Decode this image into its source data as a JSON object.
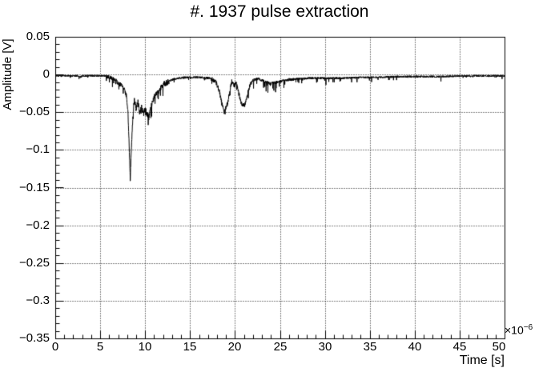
{
  "title": "#. 1937 pulse extraction",
  "colors": {
    "background": "#ffffff",
    "line": "#000000",
    "frame": "#000000",
    "grid": "#000000",
    "text": "#000000"
  },
  "x_axis": {
    "label": "Time [s]",
    "exponent": {
      "base": "×10",
      "power": "−6"
    },
    "tick_labels": [
      "0",
      "5",
      "10",
      "15",
      "20",
      "25",
      "30",
      "35",
      "40",
      "45",
      "50"
    ],
    "tick_values": [
      0,
      5,
      10,
      15,
      20,
      25,
      30,
      35,
      40,
      45,
      50
    ],
    "min": 0,
    "max": 50,
    "minor_per_major": 5
  },
  "y_axis": {
    "label": "Amplitude [V]",
    "tick_labels": [
      "0.05",
      "0",
      "−0.05",
      "−0.1",
      "−0.15",
      "−0.2",
      "−0.25",
      "−0.3",
      "−0.35"
    ],
    "tick_values": [
      0.05,
      0,
      -0.05,
      -0.1,
      -0.15,
      -0.2,
      -0.25,
      -0.3,
      -0.35
    ],
    "min": -0.35,
    "max": 0.05,
    "minor_per_major": 5
  },
  "chart_data": {
    "type": "line",
    "title": "#. 1937 pulse extraction",
    "xlabel": "Time [s]",
    "ylabel": "Amplitude [V]",
    "x_unit_multiplier": "1e-6",
    "xlim": [
      0,
      50
    ],
    "ylim": [
      -0.35,
      0.05
    ],
    "grid": true,
    "grid_style": "dotted",
    "legend": "none",
    "line_color": "#000000",
    "seed": 1937,
    "sample_step_us": 0.02,
    "keypoints": [
      [
        0.0,
        -0.001
      ],
      [
        2.5,
        -0.001
      ],
      [
        2.7,
        -0.003
      ],
      [
        3.0,
        -0.001
      ],
      [
        5.6,
        -0.001
      ],
      [
        6.2,
        -0.004
      ],
      [
        6.8,
        -0.008
      ],
      [
        7.2,
        -0.012
      ],
      [
        7.6,
        -0.018
      ],
      [
        7.9,
        -0.028
      ],
      [
        8.05,
        -0.05
      ],
      [
        8.2,
        -0.1
      ],
      [
        8.3,
        -0.138
      ],
      [
        8.4,
        -0.105
      ],
      [
        8.55,
        -0.065
      ],
      [
        8.75,
        -0.03
      ],
      [
        8.95,
        -0.045
      ],
      [
        9.15,
        -0.035
      ],
      [
        9.35,
        -0.05
      ],
      [
        9.55,
        -0.04
      ],
      [
        9.75,
        -0.052
      ],
      [
        9.95,
        -0.044
      ],
      [
        10.15,
        -0.05
      ],
      [
        10.35,
        -0.055
      ],
      [
        10.55,
        -0.045
      ],
      [
        10.75,
        -0.035
      ],
      [
        11.0,
        -0.028
      ],
      [
        11.3,
        -0.022
      ],
      [
        11.7,
        -0.016
      ],
      [
        12.1,
        -0.011
      ],
      [
        12.6,
        -0.008
      ],
      [
        13.2,
        -0.005
      ],
      [
        14.5,
        -0.003
      ],
      [
        16.0,
        -0.003
      ],
      [
        17.2,
        -0.004
      ],
      [
        17.8,
        -0.008
      ],
      [
        18.2,
        -0.02
      ],
      [
        18.5,
        -0.038
      ],
      [
        18.8,
        -0.048
      ],
      [
        19.1,
        -0.038
      ],
      [
        19.4,
        -0.02
      ],
      [
        19.6,
        -0.008
      ],
      [
        19.9,
        -0.014
      ],
      [
        20.1,
        -0.01
      ],
      [
        20.4,
        -0.025
      ],
      [
        20.7,
        -0.038
      ],
      [
        21.0,
        -0.04
      ],
      [
        21.3,
        -0.028
      ],
      [
        21.6,
        -0.014
      ],
      [
        22.0,
        -0.006
      ],
      [
        22.6,
        -0.005
      ],
      [
        23.2,
        -0.008
      ],
      [
        23.8,
        -0.011
      ],
      [
        24.4,
        -0.01
      ],
      [
        25.0,
        -0.008
      ],
      [
        25.8,
        -0.006
      ],
      [
        27.0,
        -0.005
      ],
      [
        28.5,
        -0.004
      ],
      [
        30.0,
        -0.004
      ],
      [
        32.0,
        -0.004
      ],
      [
        34.0,
        -0.003
      ],
      [
        36.0,
        -0.003
      ],
      [
        38.0,
        -0.002
      ],
      [
        40.0,
        -0.002
      ],
      [
        43.0,
        -0.002
      ],
      [
        46.0,
        -0.001
      ],
      [
        48.0,
        -0.001
      ],
      [
        50.0,
        -0.001
      ]
    ],
    "noise_segments": [
      [
        0.0,
        5.6,
        0.0012,
        0.02,
        0.003
      ],
      [
        5.6,
        7.9,
        0.003,
        0.06,
        0.01
      ],
      [
        7.9,
        8.6,
        0.003,
        0.0,
        0.0
      ],
      [
        8.6,
        12.5,
        0.004,
        0.1,
        0.014
      ],
      [
        12.5,
        17.3,
        0.0015,
        0.04,
        0.005
      ],
      [
        17.3,
        21.8,
        0.003,
        0.06,
        0.008
      ],
      [
        21.8,
        26.5,
        0.002,
        0.1,
        0.012
      ],
      [
        26.5,
        33.0,
        0.0015,
        0.06,
        0.008
      ],
      [
        33.0,
        43.0,
        0.0013,
        0.04,
        0.006
      ],
      [
        43.0,
        50.0,
        0.0012,
        0.03,
        0.004
      ]
    ]
  }
}
